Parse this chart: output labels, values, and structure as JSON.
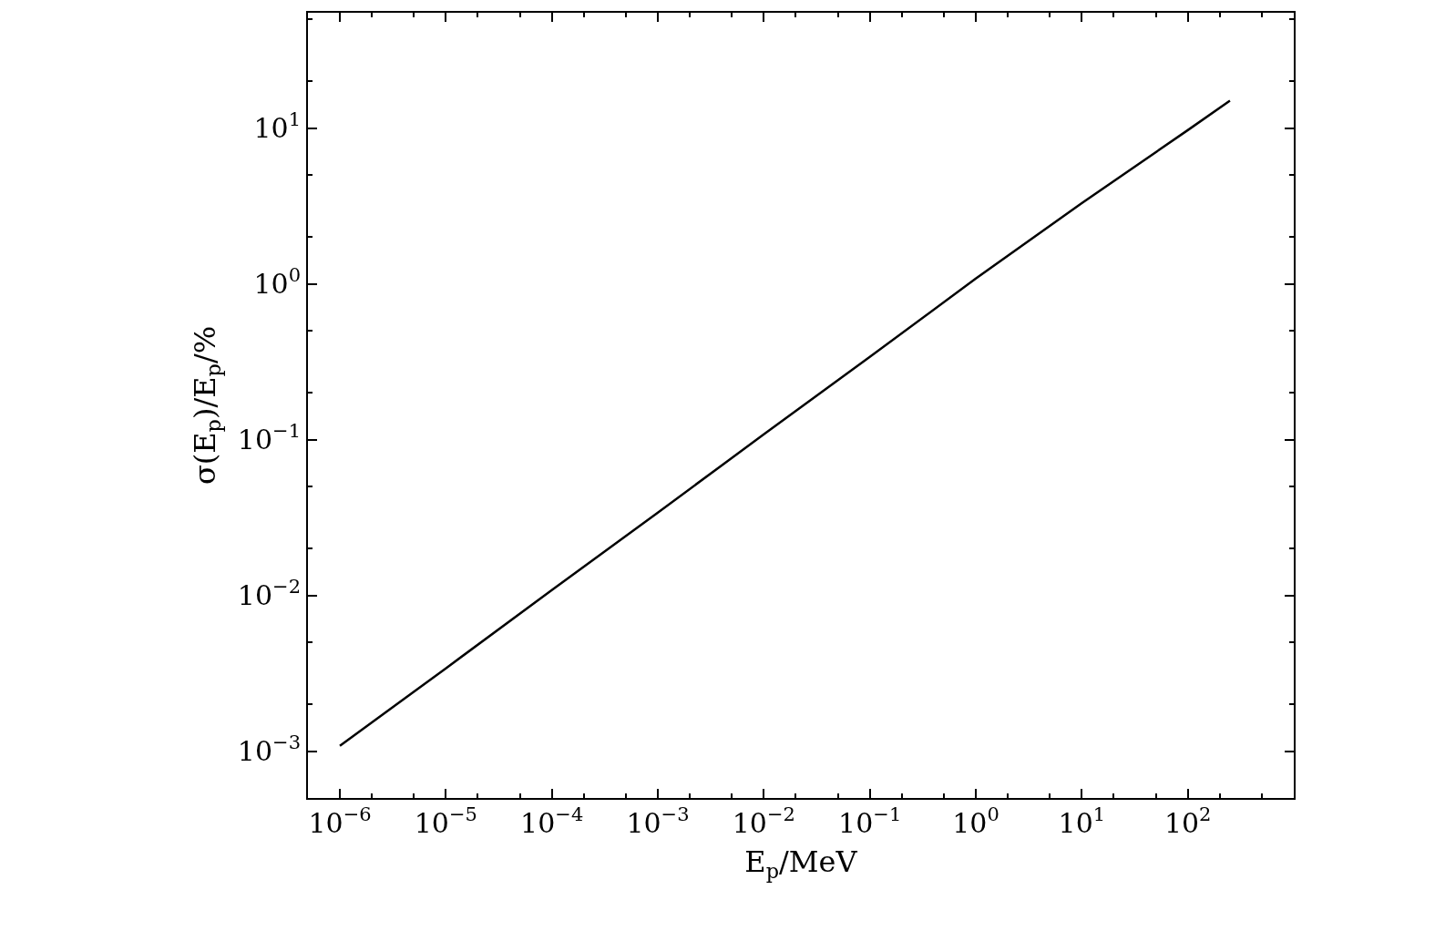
{
  "chart_data": {
    "type": "line",
    "xlabel": "E$_{p}$/MeV",
    "ylabel": "σ(E$_{p}$)/E$_{p}$/%",
    "log": "xy",
    "marker": "none",
    "line_style": "solid",
    "xlim": [
      5e-07,
      1000
    ],
    "ylim": [
      0.0005,
      55
    ],
    "xticks": [
      {
        "value": 1e-06,
        "label": "10$^{−6}$"
      },
      {
        "value": 1e-05,
        "label": "10$^{−5}$"
      },
      {
        "value": 0.0001,
        "label": "10$^{−4}$"
      },
      {
        "value": 0.001,
        "label": "10$^{−3}$"
      },
      {
        "value": 0.01,
        "label": "10$^{−2}$"
      },
      {
        "value": 0.1,
        "label": "10$^{−1}$"
      },
      {
        "value": 1,
        "label": "10$^{0}$"
      },
      {
        "value": 10,
        "label": "10$^{1}$"
      },
      {
        "value": 100,
        "label": "10$^{2}$"
      }
    ],
    "yticks": [
      {
        "value": 0.001,
        "label": "10$^{−3}$"
      },
      {
        "value": 0.01,
        "label": "10$^{−2}$"
      },
      {
        "value": 0.1,
        "label": "10$^{−1}$"
      },
      {
        "value": 1,
        "label": "10$^{0}$"
      },
      {
        "value": 10,
        "label": "10$^{1}$"
      }
    ],
    "x": [
      1e-06,
      1e-05,
      0.0001,
      0.001,
      0.01,
      0.1,
      1,
      10,
      100,
      250
    ],
    "series": [
      {
        "color": "#000000",
        "values": [
          0.00108,
          0.0034,
          0.0108,
          0.034,
          0.108,
          0.34,
          1.08,
          3.3,
          9.7,
          15
        ]
      }
    ]
  }
}
